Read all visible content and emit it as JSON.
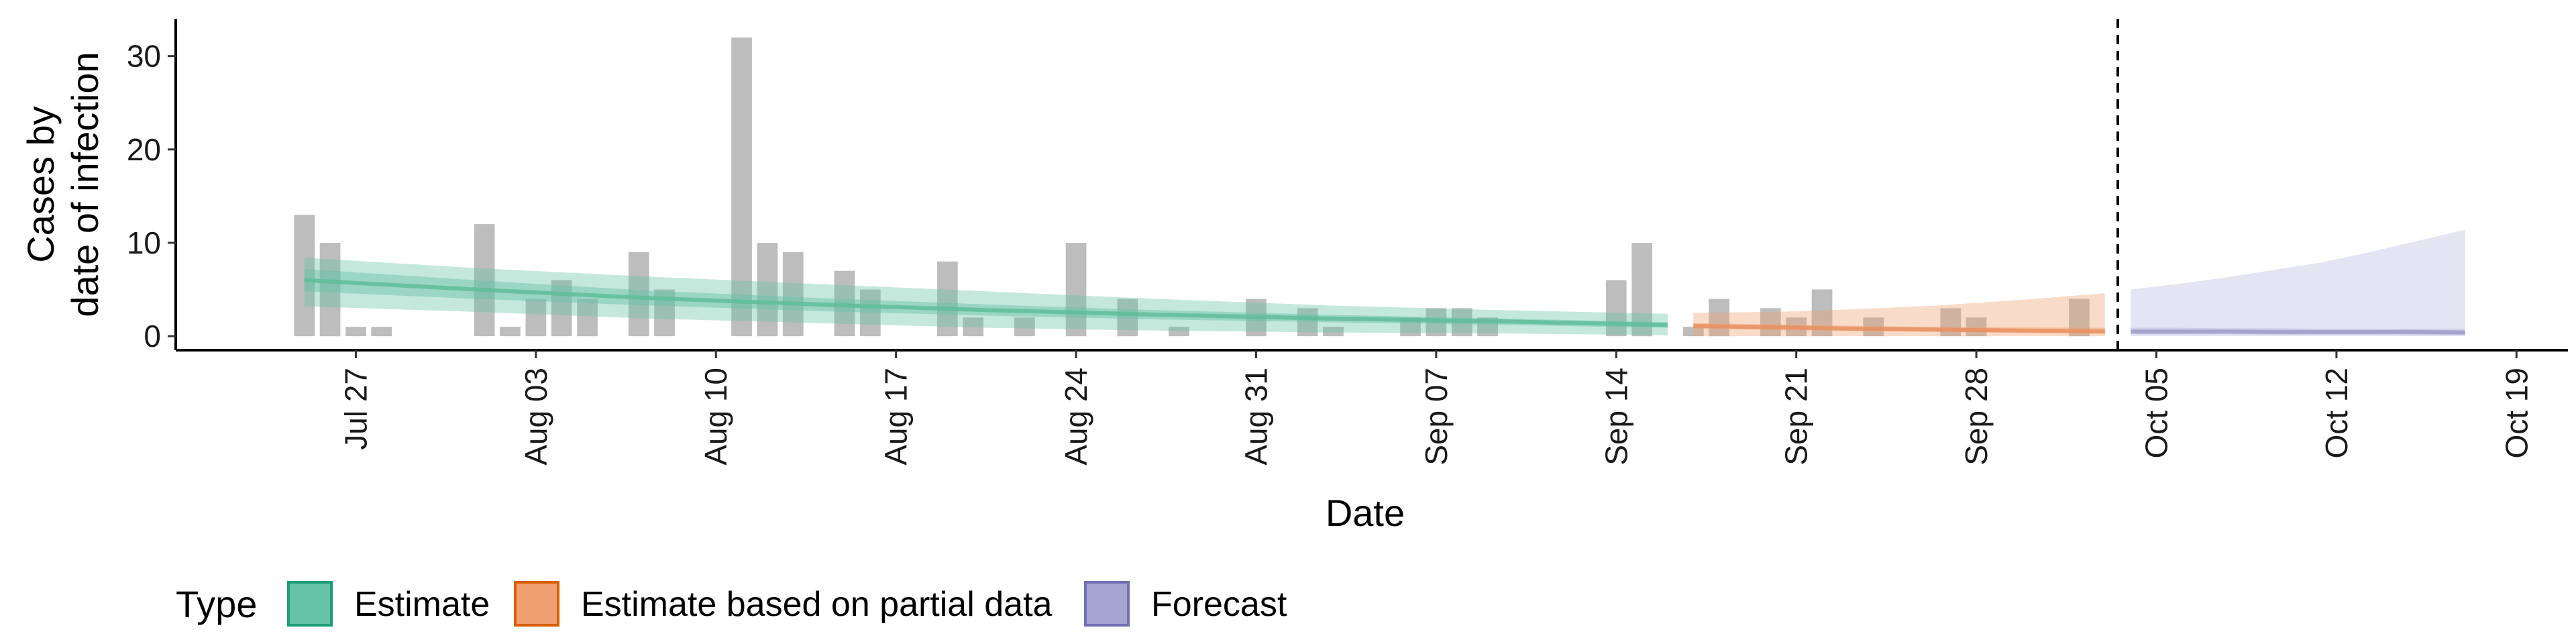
{
  "chart_data": {
    "type": "bar",
    "xlabel": "Date",
    "ylabel_lines": [
      "Cases by",
      "date of infection"
    ],
    "x_range": [
      "2020-07-20",
      "2020-10-21"
    ],
    "ylim": [
      -1.5,
      34
    ],
    "y_ticks": [
      0,
      10,
      20,
      30
    ],
    "x_ticks": [
      {
        "date": "2020-07-27",
        "label": "Jul 27"
      },
      {
        "date": "2020-08-03",
        "label": "Aug 03"
      },
      {
        "date": "2020-08-10",
        "label": "Aug 10"
      },
      {
        "date": "2020-08-17",
        "label": "Aug 17"
      },
      {
        "date": "2020-08-24",
        "label": "Aug 24"
      },
      {
        "date": "2020-08-31",
        "label": "Aug 31"
      },
      {
        "date": "2020-09-07",
        "label": "Sep 07"
      },
      {
        "date": "2020-09-14",
        "label": "Sep 14"
      },
      {
        "date": "2020-09-21",
        "label": "Sep 21"
      },
      {
        "date": "2020-09-28",
        "label": "Sep 28"
      },
      {
        "date": "2020-10-05",
        "label": "Oct 05"
      },
      {
        "date": "2020-10-12",
        "label": "Oct 12"
      },
      {
        "date": "2020-10-19",
        "label": "Oct 19"
      }
    ],
    "bars": {
      "start_date": "2020-07-25",
      "values": [
        13,
        10,
        1,
        1,
        0,
        0,
        0,
        12,
        1,
        4,
        6,
        4,
        0,
        9,
        5,
        0,
        0,
        32,
        10,
        9,
        0,
        7,
        5,
        0,
        0,
        8,
        2,
        0,
        2,
        0,
        10,
        0,
        4,
        0,
        1,
        0,
        0,
        4,
        0,
        3,
        1,
        0,
        0,
        2,
        3,
        3,
        2,
        0,
        0,
        0,
        0,
        6,
        10,
        0,
        1,
        4,
        0,
        3,
        2,
        5,
        0,
        2,
        0,
        0,
        3,
        2,
        0,
        0,
        0,
        4
      ],
      "color": "#bdbdbd"
    },
    "series": [
      {
        "name": "Estimate",
        "color": "#66c2a5",
        "line_color": "#5fbd9a",
        "start_date": "2020-07-25",
        "end_date": "2020-09-16",
        "median": [
          6.0,
          5.0,
          4.1,
          3.4,
          2.8,
          2.3,
          1.9,
          1.6,
          1.2
        ],
        "inner": [
          [
            4.8,
            7.2
          ],
          [
            4.0,
            6.0
          ],
          [
            3.3,
            4.9
          ],
          [
            2.7,
            4.1
          ],
          [
            2.2,
            3.4
          ],
          [
            1.8,
            2.8
          ],
          [
            1.5,
            2.3
          ],
          [
            1.2,
            1.9
          ],
          [
            0.9,
            1.5
          ]
        ],
        "outer": [
          [
            3.2,
            8.4
          ],
          [
            2.6,
            7.3
          ],
          [
            1.9,
            6.4
          ],
          [
            1.4,
            5.6
          ],
          [
            0.9,
            4.8
          ],
          [
            0.6,
            4.0
          ],
          [
            0.4,
            3.3
          ],
          [
            0.3,
            2.8
          ],
          [
            0.1,
            2.4
          ]
        ]
      },
      {
        "name": "Estimate based on partial data",
        "color": "#f0a070",
        "line_color": "#e89060",
        "start_date": "2020-09-17",
        "end_date": "2020-10-03",
        "median": [
          1.1,
          0.95,
          0.8,
          0.7,
          0.6,
          0.5
        ],
        "inner": [
          [
            0.8,
            1.4
          ],
          [
            0.65,
            1.25
          ],
          [
            0.55,
            1.1
          ],
          [
            0.45,
            1.0
          ],
          [
            0.35,
            0.95
          ],
          [
            0.25,
            0.9
          ]
        ],
        "outer": [
          [
            0.0,
            2.5
          ],
          [
            0.0,
            2.6
          ],
          [
            0.0,
            2.9
          ],
          [
            0.0,
            3.3
          ],
          [
            0.0,
            3.9
          ],
          [
            0.0,
            4.6
          ]
        ]
      },
      {
        "name": "Forecast",
        "color": "#b9b7dc",
        "line_color": "#9f9cc8",
        "start_date": "2020-10-04",
        "end_date": "2020-10-17",
        "median": [
          0.5,
          0.5,
          0.5,
          0.45,
          0.45,
          0.45,
          0.45,
          0.4
        ],
        "inner": [
          [
            0.2,
            0.9
          ],
          [
            0.2,
            0.9
          ],
          [
            0.2,
            0.85
          ],
          [
            0.15,
            0.85
          ],
          [
            0.15,
            0.8
          ],
          [
            0.15,
            0.8
          ],
          [
            0.1,
            0.8
          ],
          [
            0.1,
            0.8
          ]
        ],
        "outer": [
          [
            0.0,
            5.0
          ],
          [
            0.0,
            5.6
          ],
          [
            0.0,
            6.3
          ],
          [
            0.0,
            7.1
          ],
          [
            0.0,
            7.9
          ],
          [
            0.0,
            9.0
          ],
          [
            0.0,
            10.2
          ],
          [
            0.0,
            11.4
          ]
        ]
      }
    ],
    "vline_date": "2020-10-04",
    "legend": {
      "title": "Type",
      "position": "bottom-left",
      "items": [
        {
          "label": "Estimate",
          "fill": "#66c2a5",
          "stroke": "#1b9e77"
        },
        {
          "label": "Estimate based on partial data",
          "fill": "#f0a070",
          "stroke": "#d95f02"
        },
        {
          "label": "Forecast",
          "fill": "#a7a4d2",
          "stroke": "#7570b3"
        }
      ]
    },
    "grid": false
  }
}
